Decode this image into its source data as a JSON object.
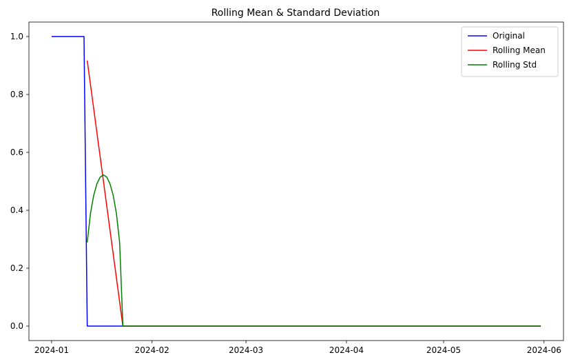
{
  "chart_data": {
    "type": "line",
    "title": "Rolling Mean & Standard Deviation",
    "xlabel": "",
    "ylabel": "",
    "x_type": "date",
    "xlim": [
      "2023-12-25",
      "2024-06-07"
    ],
    "ylim": [
      -0.05,
      1.05
    ],
    "x_ticks": [
      "2024-01-01",
      "2024-02-01",
      "2024-03-01",
      "2024-04-01",
      "2024-05-01",
      "2024-06-01"
    ],
    "x_tick_labels": [
      "2024-01",
      "2024-02",
      "2024-03",
      "2024-04",
      "2024-05",
      "2024-06"
    ],
    "y_ticks": [
      0.0,
      0.2,
      0.4,
      0.6,
      0.8,
      1.0
    ],
    "y_tick_labels": [
      "0.0",
      "0.2",
      "0.4",
      "0.6",
      "0.8",
      "1.0"
    ],
    "grid": false,
    "legend_position": "top-right",
    "series": [
      {
        "name": "Original",
        "color": "#0000ff",
        "points": [
          [
            "2024-01-01",
            1.0
          ],
          [
            "2024-01-11",
            1.0
          ],
          [
            "2024-01-12",
            0.0
          ],
          [
            "2024-05-31",
            0.0
          ]
        ]
      },
      {
        "name": "Rolling Mean",
        "color": "#ff0000",
        "points": [
          [
            "2024-01-12",
            0.917
          ],
          [
            "2024-01-23",
            0.0
          ],
          [
            "2024-05-31",
            0.0
          ]
        ]
      },
      {
        "name": "Rolling Std",
        "color": "#008000",
        "points": [
          [
            "2024-01-12",
            0.289
          ],
          [
            "2024-01-13",
            0.389
          ],
          [
            "2024-01-14",
            0.452
          ],
          [
            "2024-01-15",
            0.492
          ],
          [
            "2024-01-16",
            0.515
          ],
          [
            "2024-01-17",
            0.522
          ],
          [
            "2024-01-18",
            0.515
          ],
          [
            "2024-01-19",
            0.492
          ],
          [
            "2024-01-20",
            0.452
          ],
          [
            "2024-01-21",
            0.389
          ],
          [
            "2024-01-22",
            0.289
          ],
          [
            "2024-01-23",
            0.0
          ],
          [
            "2024-05-31",
            0.0
          ]
        ]
      }
    ]
  }
}
